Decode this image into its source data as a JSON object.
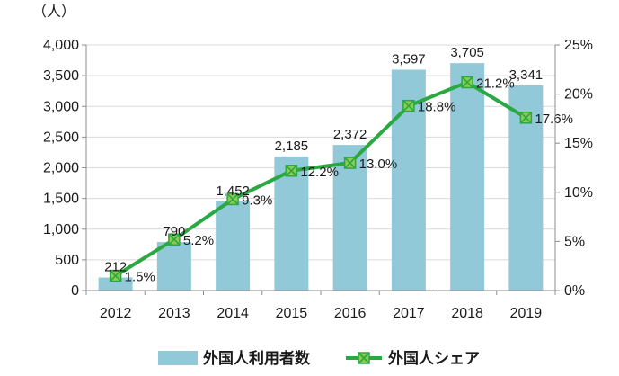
{
  "chart_data": {
    "type": "bar+line",
    "categories": [
      "2012",
      "2013",
      "2014",
      "2015",
      "2016",
      "2017",
      "2018",
      "2019"
    ],
    "y_unit_label": "（人）",
    "y_left": {
      "min": 0,
      "max": 4000,
      "step": 500,
      "tick_labels": [
        "0",
        "500",
        "1,000",
        "1,500",
        "2,000",
        "2,500",
        "3,000",
        "3,500",
        "4,000"
      ]
    },
    "y_right": {
      "min": 0,
      "max": 25,
      "step": 5,
      "tick_labels": [
        "0%",
        "5%",
        "10%",
        "15%",
        "20%",
        "25%"
      ]
    },
    "series": [
      {
        "name": "外国人利用者数",
        "kind": "bar",
        "axis": "left",
        "color": "#92c9d9",
        "values": [
          212,
          790,
          1452,
          2185,
          2372,
          3597,
          3705,
          3341
        ],
        "labels": [
          "212",
          "790",
          "1,452",
          "2,185",
          "2,372",
          "3,597",
          "3,705",
          "3,341"
        ]
      },
      {
        "name": "外国人シェア",
        "kind": "line",
        "axis": "right",
        "color": "#2aa842",
        "marker_color": "#8dcb52",
        "values": [
          1.5,
          5.2,
          9.3,
          12.2,
          13.0,
          18.8,
          21.2,
          17.6
        ],
        "labels": [
          "1.5%",
          "5.2%",
          "9.3%",
          "12.2%",
          "13.0%",
          "18.8%",
          "21.2%",
          "17.6%"
        ]
      }
    ],
    "grid": true,
    "legend_position": "bottom"
  }
}
